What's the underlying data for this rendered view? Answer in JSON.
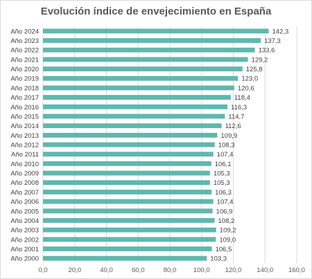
{
  "chart_data": {
    "type": "bar",
    "orientation": "horizontal",
    "title": "Evolución índice de envejecimiento en España",
    "categories": [
      "Año  2024",
      "Año 2023",
      "Año 2022",
      "Año 2021",
      "Año 2020",
      "Año 2019",
      "Año 2018",
      "Año 2017",
      "Año 2016",
      "Año 2015",
      "Año 2014",
      "Año 2013",
      "Año 2012",
      "Año 2011",
      "Año 2010",
      "Año 2009",
      "Año 2008",
      "Año 2007",
      "Año 2006",
      "Año 2005",
      "Año 2004",
      "Año 2003",
      "Año 2002",
      "Año 2001",
      "Año 2000"
    ],
    "values": [
      142.3,
      137.3,
      133.6,
      129.2,
      125.8,
      123.0,
      120.6,
      118.4,
      116.3,
      114.7,
      112.6,
      109.9,
      108.3,
      107.4,
      106.1,
      105.3,
      105.3,
      106.3,
      107.4,
      106.9,
      108.2,
      109.2,
      109.0,
      106.5,
      103.3
    ],
    "value_labels": [
      "142,3",
      "137,3",
      "133,6",
      "129,2",
      "125,8",
      "123,0",
      "120,6",
      "118,4",
      "116,3",
      "114,7",
      "112,6",
      "109,9",
      "108,3",
      "107,4",
      "106,1",
      "105,3",
      "105,3",
      "106,3",
      "107,4",
      "106,9",
      "108,2",
      "109,2",
      "109,0",
      "106,5",
      "103,3"
    ],
    "xlim": [
      0,
      160
    ],
    "xticks": [
      "0,0",
      "20,0",
      "40,0",
      "60,0",
      "80,0",
      "100,0",
      "120,0",
      "140,0",
      "160,0"
    ],
    "bar_color": "#5fb8ad",
    "grid": true
  }
}
